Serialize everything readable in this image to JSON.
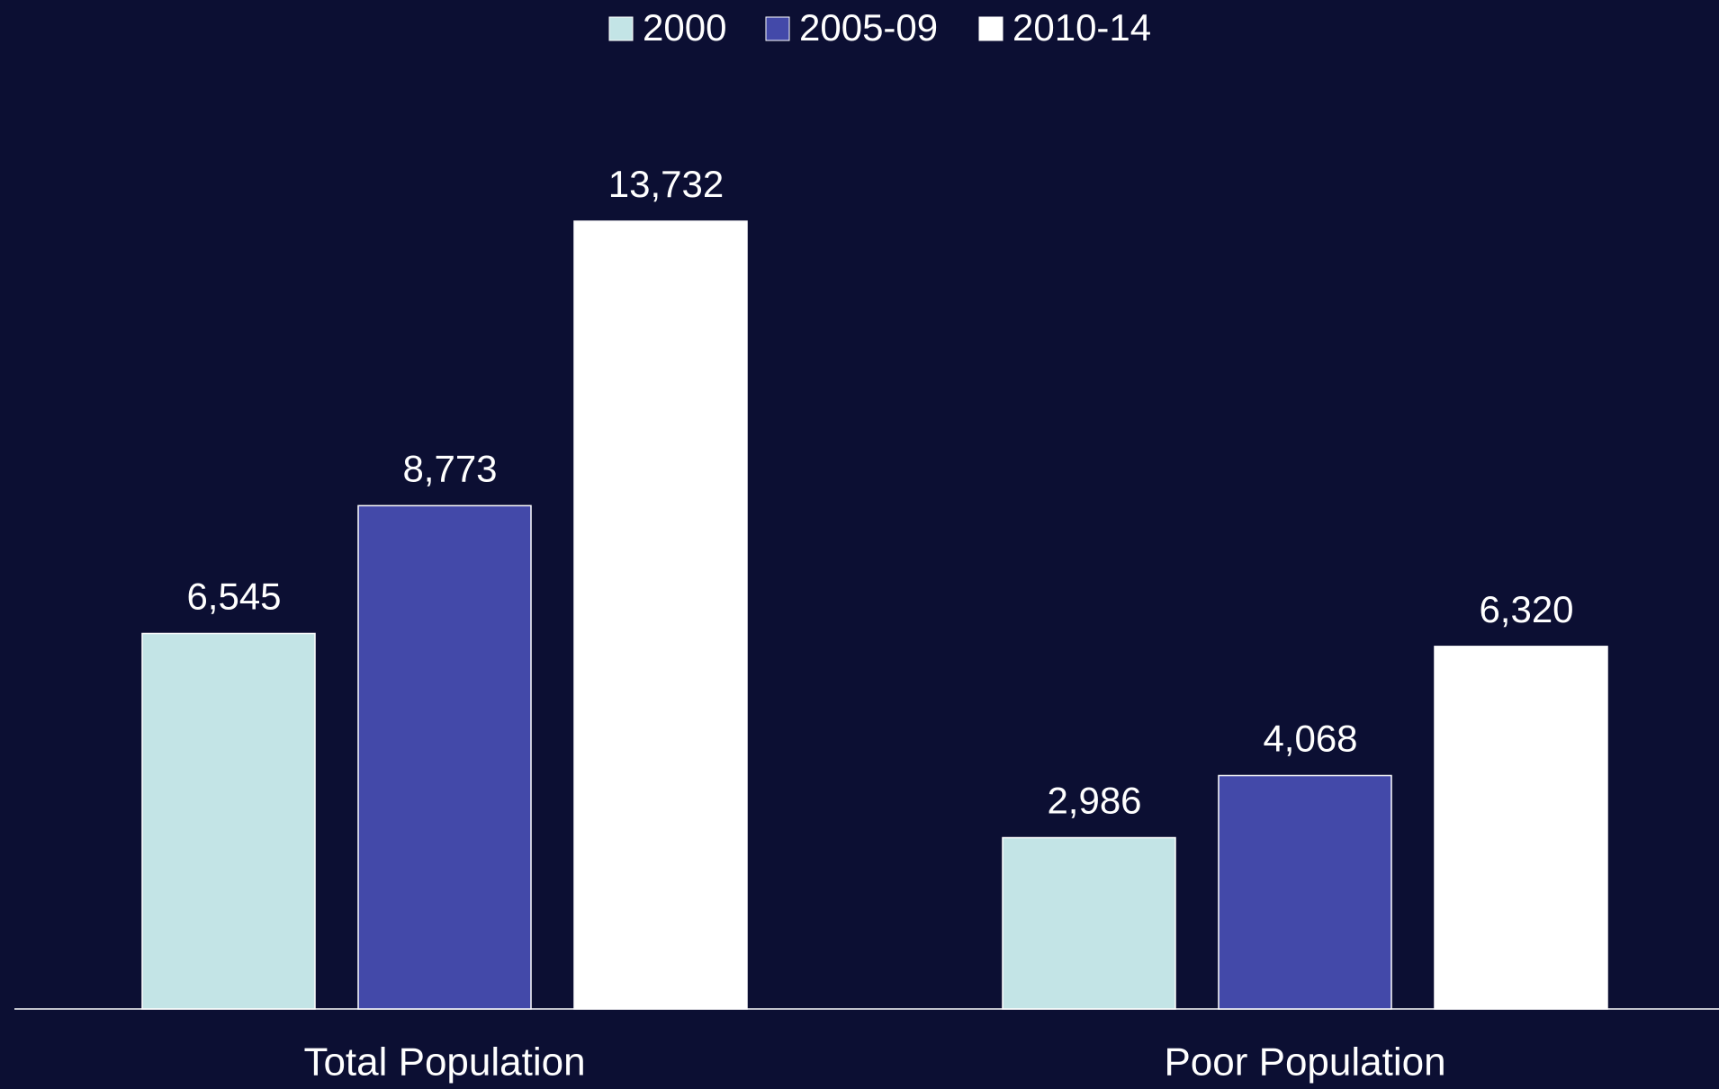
{
  "chart_data": {
    "type": "bar",
    "categories": [
      "Total Population",
      "Poor Population"
    ],
    "series": [
      {
        "name": "2000",
        "color": "#c3e4e6",
        "values": [
          6545,
          2986
        ],
        "value_labels": [
          "6,545",
          "2,986"
        ]
      },
      {
        "name": "2005-09",
        "color": "#4349a9",
        "values": [
          8773,
          4068
        ],
        "value_labels": [
          "8,773",
          "4,068"
        ]
      },
      {
        "name": "2010-14",
        "color": "#ffffff",
        "values": [
          13732,
          6320
        ],
        "value_labels": [
          "13,732",
          "6,320"
        ]
      }
    ],
    "legend": "top"
  }
}
